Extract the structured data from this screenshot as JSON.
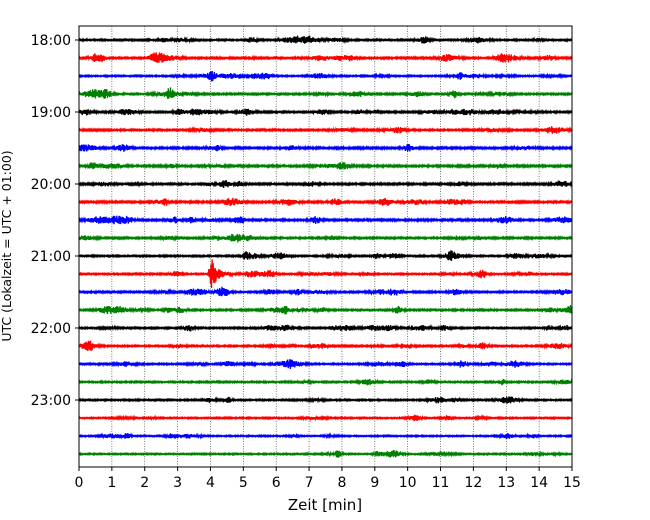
{
  "chart_data": {
    "type": "line",
    "title": "",
    "xlabel": "Zeit  [min]",
    "ylabel": "UTC (Lokalzeit = UTC + 01:00)",
    "xlim": [
      0,
      15
    ],
    "x_ticks": [
      0,
      1,
      2,
      3,
      4,
      5,
      6,
      7,
      8,
      9,
      10,
      11,
      12,
      13,
      14,
      15
    ],
    "x_tick_labels": [
      "0",
      "1",
      "2",
      "3",
      "4",
      "5",
      "6",
      "7",
      "8",
      "9",
      "10",
      "11",
      "12",
      "13",
      "14",
      "15"
    ],
    "y_tick_labels": [
      "18:00",
      "19:00",
      "20:00",
      "21:00",
      "22:00",
      "23:00"
    ],
    "x_grid": true,
    "trace_interval_minutes": 15,
    "colors": [
      "#000000",
      "#ff0000",
      "#0000ff",
      "#008000"
    ],
    "traces": [
      {
        "start": "18:00",
        "color": "#000000",
        "level": 0.18
      },
      {
        "start": "18:15",
        "color": "#ff0000",
        "level": 0.24
      },
      {
        "start": "18:30",
        "color": "#0000ff",
        "level": 0.14
      },
      {
        "start": "18:45",
        "color": "#008000",
        "level": 0.22
      },
      {
        "start": "19:00",
        "color": "#000000",
        "level": 0.22
      },
      {
        "start": "19:15",
        "color": "#ff0000",
        "level": 0.24
      },
      {
        "start": "19:30",
        "color": "#0000ff",
        "level": 0.3
      },
      {
        "start": "19:45",
        "color": "#008000",
        "level": 0.3
      },
      {
        "start": "20:00",
        "color": "#000000",
        "level": 0.26
      },
      {
        "start": "20:15",
        "color": "#ff0000",
        "level": 0.28
      },
      {
        "start": "20:30",
        "color": "#0000ff",
        "level": 0.3
      },
      {
        "start": "20:45",
        "color": "#008000",
        "level": 0.24
      },
      {
        "start": "21:00",
        "color": "#000000",
        "level": 0.16
      },
      {
        "start": "21:15",
        "color": "#ff0000",
        "level": 0.16,
        "event_at_min": 4.0
      },
      {
        "start": "21:30",
        "color": "#0000ff",
        "level": 0.22
      },
      {
        "start": "21:45",
        "color": "#008000",
        "level": 0.2
      },
      {
        "start": "22:00",
        "color": "#000000",
        "level": 0.18
      },
      {
        "start": "22:15",
        "color": "#ff0000",
        "level": 0.18
      },
      {
        "start": "22:30",
        "color": "#0000ff",
        "level": 0.16
      },
      {
        "start": "22:45",
        "color": "#008000",
        "level": 0.16
      },
      {
        "start": "23:00",
        "color": "#000000",
        "level": 0.16
      },
      {
        "start": "23:15",
        "color": "#ff0000",
        "level": 0.12
      },
      {
        "start": "23:30",
        "color": "#0000ff",
        "level": 0.1
      },
      {
        "start": "23:45",
        "color": "#008000",
        "level": 0.1
      }
    ]
  }
}
